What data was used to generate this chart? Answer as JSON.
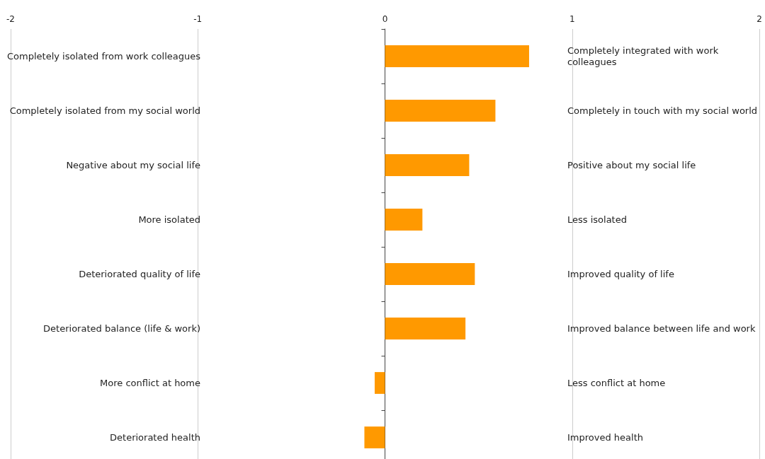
{
  "chart_data": {
    "type": "bar",
    "orientation": "horizontal",
    "categories": [
      "Completely isolated from work colleagues",
      "Completely isolated from my social world",
      "Negative about my social life",
      "More isolated",
      "Deteriorated quality of life",
      "Deteriorated balance (life & work)",
      "More conflict at home",
      "Deteriorated health"
    ],
    "y2_categories": [
      "Completely integrated with work colleagues",
      "Completely in touch with my social world",
      "Positive about my social life",
      "Less isolated",
      "Improved quality of life",
      "Improved balance between life and work",
      "Less conflict at home",
      "Improved health"
    ],
    "values": [
      0.77,
      0.59,
      0.45,
      0.2,
      0.48,
      0.43,
      -0.055,
      -0.11
    ],
    "color": "#ff9900",
    "xlim": [
      -2,
      2
    ],
    "xticks": [
      -2,
      -1,
      0,
      1,
      2
    ],
    "grid": "x"
  }
}
